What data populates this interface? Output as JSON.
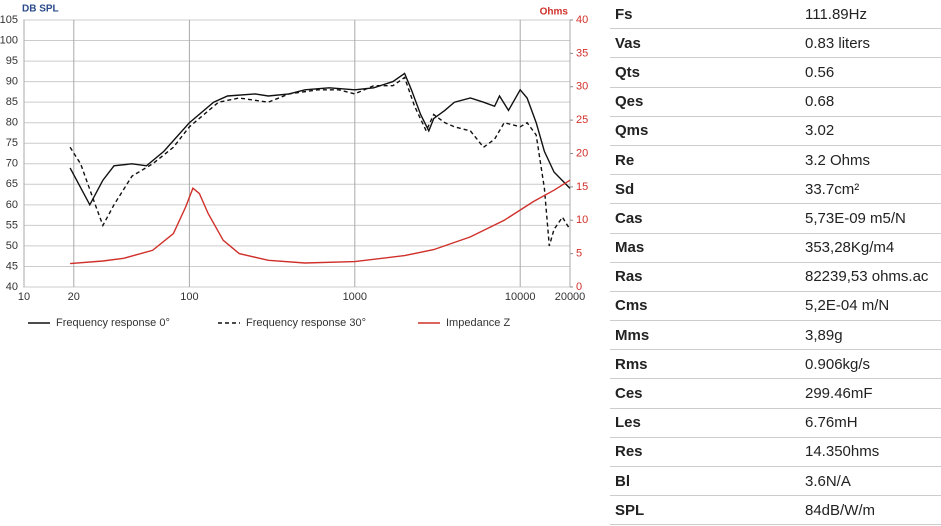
{
  "chart_data": {
    "type": "line",
    "y_label": "DB SPL",
    "y2_label": "Ohms",
    "xscale": "log",
    "grid": true,
    "xlim": [
      10,
      20000
    ],
    "xticks": [
      10,
      20,
      100,
      1000,
      10000,
      20000
    ],
    "ylim": [
      40,
      105
    ],
    "yticks": [
      40,
      45,
      50,
      55,
      60,
      65,
      70,
      75,
      80,
      85,
      90,
      95,
      100,
      105
    ],
    "y2lim": [
      0,
      40
    ],
    "y2ticks": [
      0,
      5,
      10,
      15,
      20,
      25,
      30,
      35,
      40
    ],
    "series": [
      {
        "name": "Frequency response 0°",
        "color": "#111111",
        "linestyle": "solid",
        "x": [
          19,
          25,
          30,
          35,
          45,
          55,
          70,
          100,
          140,
          170,
          250,
          300,
          400,
          500,
          700,
          1000,
          1300,
          1700,
          2000,
          2200,
          2500,
          2800,
          3000,
          3500,
          4000,
          5000,
          6000,
          7000,
          7500,
          8500,
          10000,
          11000,
          12500,
          14000,
          16000,
          20000
        ],
        "values": [
          69,
          60,
          66,
          69.5,
          70,
          69.5,
          73,
          80,
          85,
          86.5,
          87,
          86.5,
          87,
          88,
          88.5,
          88,
          88.5,
          90,
          92,
          88,
          82,
          78,
          81,
          83,
          85,
          86,
          85,
          84,
          86.5,
          83,
          88,
          86,
          80,
          73,
          68,
          64
        ]
      },
      {
        "name": "Frequency response 30°",
        "color": "#111111",
        "linestyle": "dashed",
        "x": [
          19,
          22,
          27,
          30,
          35,
          45,
          60,
          80,
          100,
          150,
          200,
          300,
          400,
          600,
          800,
          1000,
          1300,
          1700,
          2000,
          2300,
          2700,
          3000,
          3500,
          4000,
          5000,
          6000,
          7000,
          8000,
          10000,
          11000,
          12500,
          14000,
          15000,
          16000,
          18000,
          20000
        ],
        "values": [
          74,
          70,
          60,
          55,
          60,
          67,
          70,
          74,
          79,
          85,
          86,
          85,
          87,
          88,
          88,
          87,
          89,
          89,
          91,
          84,
          78,
          82,
          80,
          79,
          78,
          74,
          76,
          80,
          79,
          80,
          77,
          64,
          50,
          54,
          57,
          54
        ]
      },
      {
        "name": "Impedance Z",
        "color": "#d0302a",
        "linestyle": "solid",
        "axis": "y2",
        "x": [
          19,
          30,
          40,
          60,
          80,
          95,
          105,
          115,
          130,
          160,
          200,
          300,
          500,
          1000,
          2000,
          3000,
          5000,
          8000,
          12000,
          16000,
          20000
        ],
        "values": [
          3.5,
          3.9,
          4.3,
          5.5,
          8,
          12,
          14.8,
          14,
          11,
          7,
          5,
          4,
          3.6,
          3.8,
          4.7,
          5.6,
          7.5,
          10,
          12.8,
          14.5,
          16
        ]
      }
    ]
  },
  "table": {
    "rows": [
      [
        "Fs",
        "111.89Hz"
      ],
      [
        "Vas",
        "0.83 liters"
      ],
      [
        "Qts",
        "0.56"
      ],
      [
        "Qes",
        "0.68"
      ],
      [
        "Qms",
        "3.02"
      ],
      [
        "Re",
        "3.2 Ohms"
      ],
      [
        "Sd",
        "33.7cm²"
      ],
      [
        "Cas",
        "5,73E-09 m5/N"
      ],
      [
        "Mas",
        "353,28Kg/m4"
      ],
      [
        "Ras",
        "82239,53 ohms.ac"
      ],
      [
        "Cms",
        "5,2E-04 m/N"
      ],
      [
        "Mms",
        "3,89g"
      ],
      [
        "Rms",
        "0.906kg/s"
      ],
      [
        "Ces",
        "299.46mF"
      ],
      [
        "Les",
        "6.76mH"
      ],
      [
        "Res",
        "14.350hms"
      ],
      [
        "Bl",
        "3.6N/A"
      ],
      [
        "SPL",
        "84dB/W/m"
      ]
    ]
  }
}
